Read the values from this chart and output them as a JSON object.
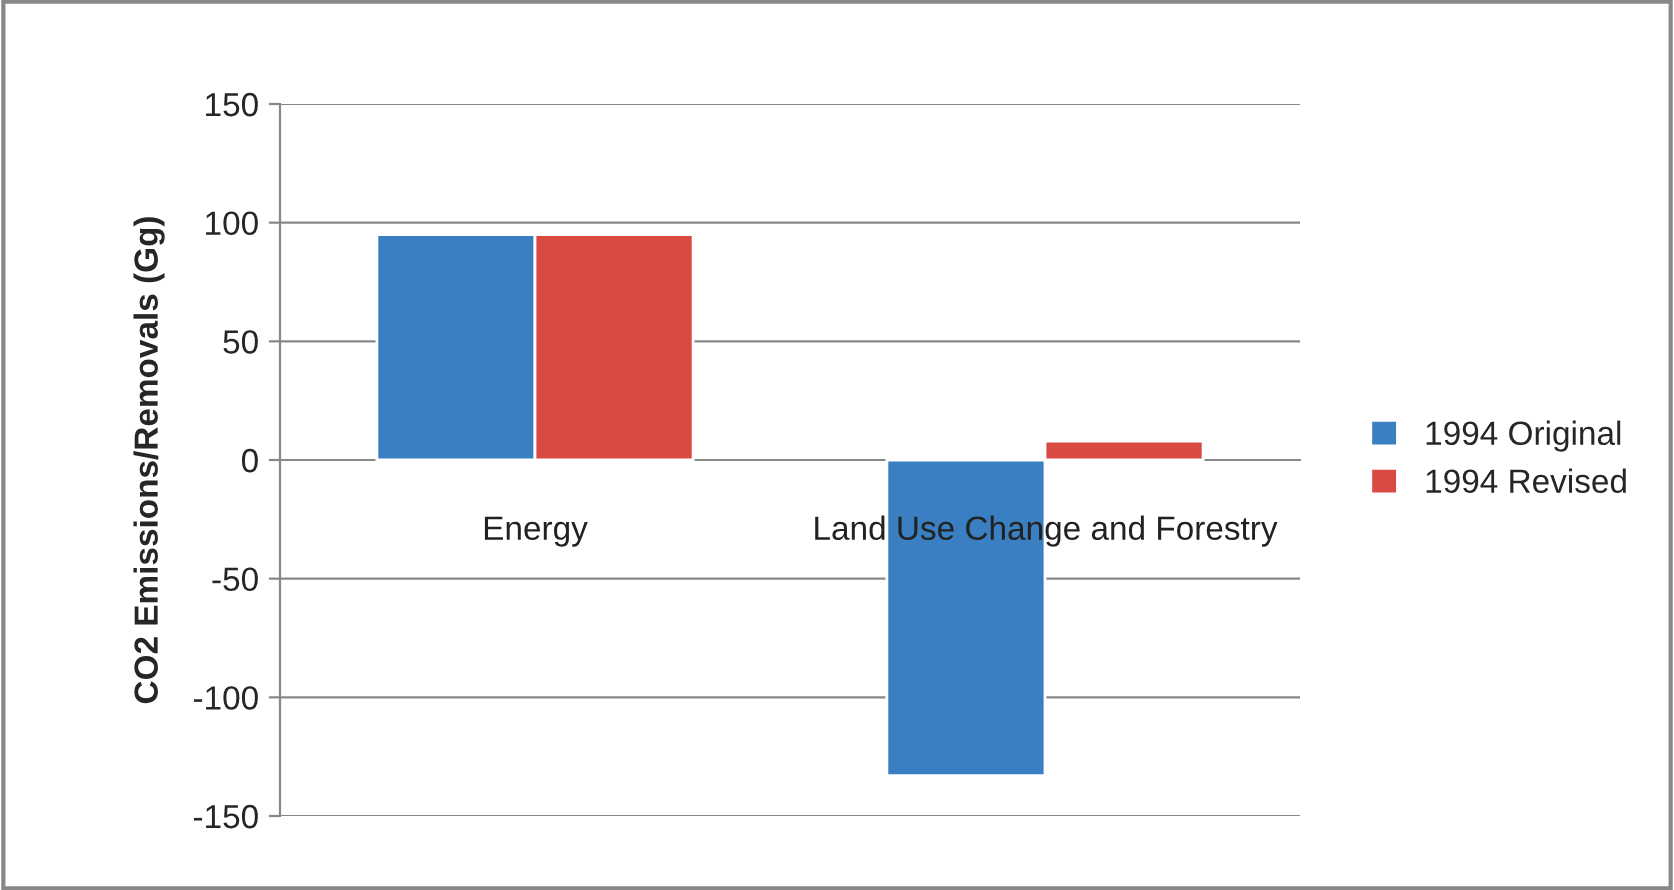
{
  "chart_data": {
    "type": "bar",
    "ylabel": "CO2 Emissions/Removals (Gg)",
    "categories": [
      "Energy",
      "Land Use Change and Forestry"
    ],
    "series": [
      {
        "name": "1994 Original",
        "color": "#3a7fc1",
        "values": [
          95,
          -133
        ]
      },
      {
        "name": "1994 Revised",
        "color": "#d94a43",
        "values": [
          95,
          8
        ]
      }
    ],
    "ylim": [
      -150,
      150
    ],
    "yticks": [
      -150,
      -100,
      -50,
      0,
      50,
      100,
      150
    ],
    "grid": "y",
    "legend": "right"
  }
}
